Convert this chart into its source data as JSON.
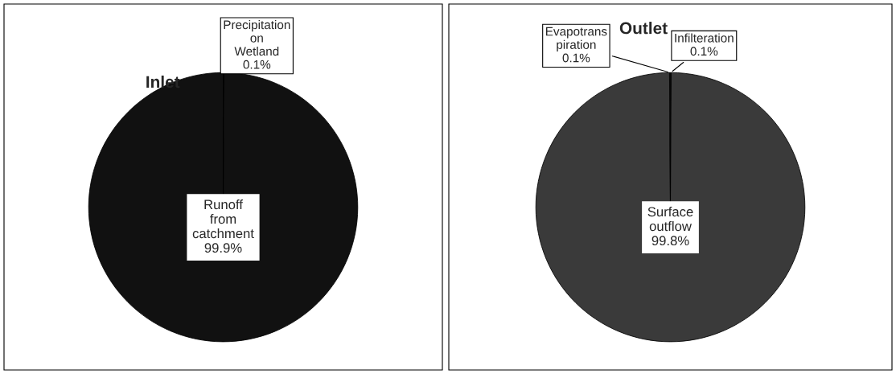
{
  "chart_data": [
    {
      "type": "pie",
      "title": "Inlet",
      "categories": [
        "Precipitation\non\nWetland",
        "Runoff\nfrom\ncatchment"
      ],
      "values": [
        0.1,
        99.9
      ],
      "value_labels": [
        "0.1%",
        "99.9%"
      ],
      "colors": [
        "#111111",
        "#111111"
      ]
    },
    {
      "type": "pie",
      "title": "Outlet",
      "categories": [
        "Infilteration",
        "Surface\noutflow",
        "Evapotrans\npiration"
      ],
      "values": [
        0.1,
        99.8,
        0.1
      ],
      "value_labels": [
        "0.1%",
        "99.8%",
        "0.1%"
      ],
      "colors": [
        "#3a3a3a",
        "#3a3a3a",
        "#3a3a3a"
      ]
    }
  ]
}
